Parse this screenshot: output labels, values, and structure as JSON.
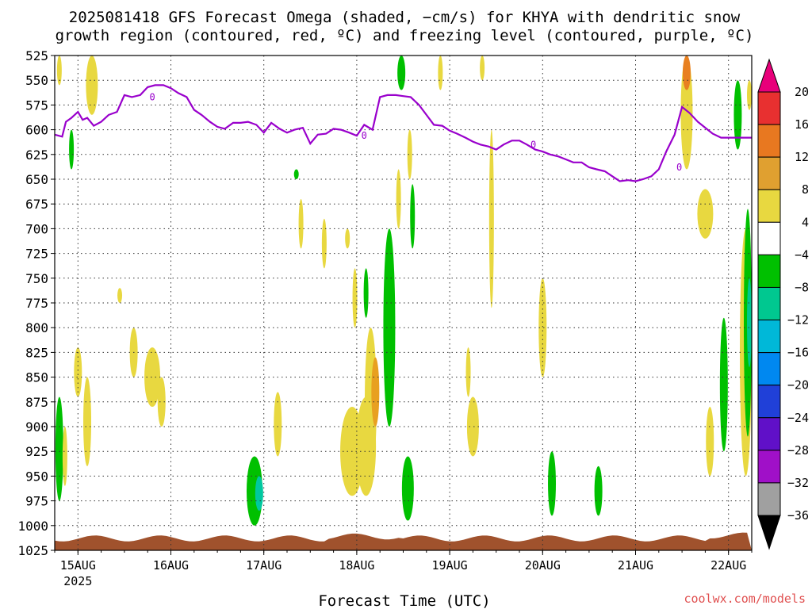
{
  "chart_data": {
    "type": "heatmap",
    "title_line1": "2025081418 GFS Forecast Omega (shaded, −cm/s) for KHYA with dendritic snow",
    "title_line2": "growth region (contoured, red, ºC) and freezing level (contoured, purple, ºC)",
    "xlabel": "Forecast Time (UTC)",
    "credit": "coolwx.com/models",
    "y_ticks": [
      525,
      550,
      575,
      600,
      625,
      650,
      675,
      700,
      725,
      750,
      775,
      800,
      825,
      850,
      875,
      900,
      925,
      950,
      975,
      1000,
      1025
    ],
    "ylim": [
      525,
      1025
    ],
    "x_ticks": [
      {
        "label": "15AUG",
        "day": 15
      },
      {
        "label": "16AUG",
        "day": 16
      },
      {
        "label": "17AUG",
        "day": 17
      },
      {
        "label": "18AUG",
        "day": 18
      },
      {
        "label": "19AUG",
        "day": 19
      },
      {
        "label": "20AUG",
        "day": 20
      },
      {
        "label": "21AUG",
        "day": 21
      },
      {
        "label": "22AUG",
        "day": 22
      }
    ],
    "x_year": "2025",
    "xlim_days": [
      14.75,
      22.25
    ],
    "grid": true,
    "colorbar": {
      "levels": [
        "20",
        "16",
        "12",
        "8",
        "4",
        "−4",
        "−8",
        "−12",
        "−16",
        "−20",
        "−24",
        "−28",
        "−32",
        "−36"
      ],
      "colors": [
        "#e8007a",
        "#e83030",
        "#e87820",
        "#e0a030",
        "#e8d840",
        "#ffffff",
        "#00c000",
        "#00c890",
        "#00b8d8",
        "#0088f0",
        "#2040d8",
        "#6010c8",
        "#a010c8",
        "#a0a0a0"
      ],
      "top_color": "#e8007a",
      "bottom_color": "#000000"
    },
    "freezing_level": {
      "label": "0",
      "color": "#9900cc",
      "points": [
        [
          14.75,
          605
        ],
        [
          14.83,
          607
        ],
        [
          14.87,
          592
        ],
        [
          14.93,
          588
        ],
        [
          15.0,
          582
        ],
        [
          15.05,
          590
        ],
        [
          15.1,
          588
        ],
        [
          15.17,
          596
        ],
        [
          15.25,
          592
        ],
        [
          15.33,
          585
        ],
        [
          15.42,
          582
        ],
        [
          15.5,
          565
        ],
        [
          15.58,
          567
        ],
        [
          15.67,
          565
        ],
        [
          15.75,
          557
        ],
        [
          15.83,
          555
        ],
        [
          15.92,
          555
        ],
        [
          16.0,
          558
        ],
        [
          16.08,
          563
        ],
        [
          16.17,
          567
        ],
        [
          16.25,
          580
        ],
        [
          16.33,
          585
        ],
        [
          16.42,
          592
        ],
        [
          16.5,
          597
        ],
        [
          16.58,
          599
        ],
        [
          16.67,
          593
        ],
        [
          16.75,
          593
        ],
        [
          16.83,
          592
        ],
        [
          16.92,
          595
        ],
        [
          17.0,
          603
        ],
        [
          17.08,
          593
        ],
        [
          17.17,
          599
        ],
        [
          17.25,
          603
        ],
        [
          17.33,
          600
        ],
        [
          17.42,
          598
        ],
        [
          17.5,
          614
        ],
        [
          17.58,
          605
        ],
        [
          17.67,
          604
        ],
        [
          17.75,
          599
        ],
        [
          17.83,
          600
        ],
        [
          17.92,
          603
        ],
        [
          18.0,
          606
        ],
        [
          18.08,
          595
        ],
        [
          18.17,
          600
        ],
        [
          18.25,
          567
        ],
        [
          18.33,
          565
        ],
        [
          18.42,
          565
        ],
        [
          18.5,
          566
        ],
        [
          18.58,
          567
        ],
        [
          18.67,
          575
        ],
        [
          18.75,
          585
        ],
        [
          18.83,
          595
        ],
        [
          18.92,
          596
        ],
        [
          19.0,
          601
        ],
        [
          19.08,
          604
        ],
        [
          19.17,
          608
        ],
        [
          19.25,
          612
        ],
        [
          19.33,
          615
        ],
        [
          19.42,
          617
        ],
        [
          19.5,
          620
        ],
        [
          19.58,
          615
        ],
        [
          19.67,
          611
        ],
        [
          19.75,
          611
        ],
        [
          19.83,
          615
        ],
        [
          19.92,
          620
        ],
        [
          20.0,
          622
        ],
        [
          20.08,
          625
        ],
        [
          20.17,
          627
        ],
        [
          20.25,
          630
        ],
        [
          20.33,
          633
        ],
        [
          20.42,
          633
        ],
        [
          20.5,
          638
        ],
        [
          20.58,
          640
        ],
        [
          20.67,
          642
        ],
        [
          20.75,
          647
        ],
        [
          20.83,
          652
        ],
        [
          20.92,
          651
        ],
        [
          21.0,
          652
        ],
        [
          21.08,
          650
        ],
        [
          21.17,
          647
        ],
        [
          21.25,
          640
        ],
        [
          21.33,
          622
        ],
        [
          21.42,
          605
        ],
        [
          21.5,
          577
        ],
        [
          21.58,
          583
        ],
        [
          21.67,
          592
        ],
        [
          21.75,
          598
        ],
        [
          21.83,
          604
        ],
        [
          21.92,
          608
        ],
        [
          22.0,
          608
        ],
        [
          22.08,
          608
        ],
        [
          22.25,
          608
        ]
      ]
    }
  }
}
